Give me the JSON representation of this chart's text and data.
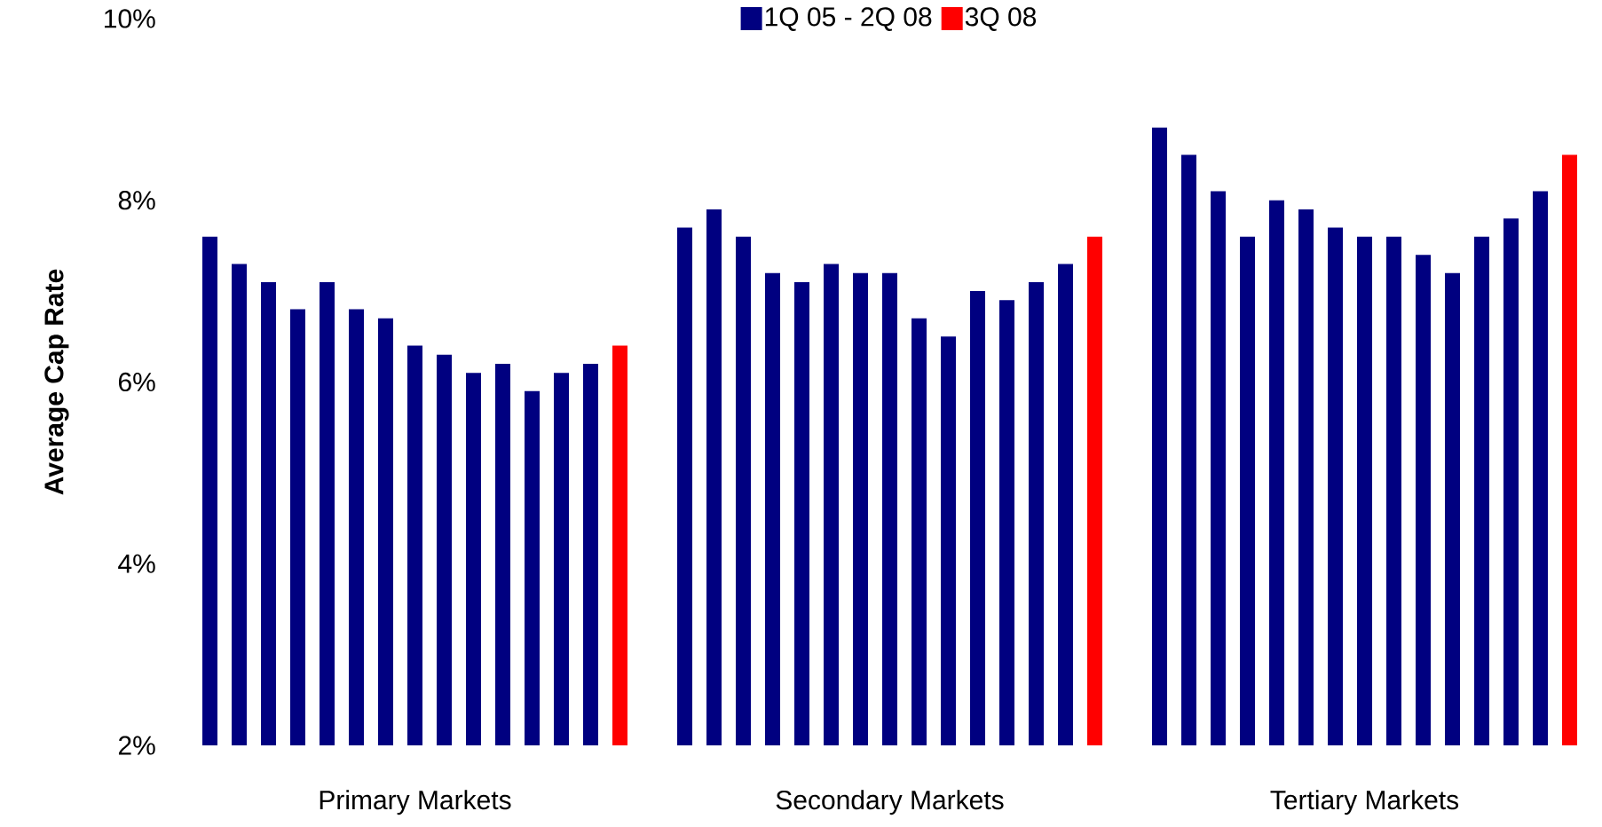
{
  "chart_data": {
    "type": "bar",
    "ylabel": "Average Cap Rate",
    "categories": [
      "Primary Markets",
      "Secondary Markets",
      "Tertiary Markets"
    ],
    "series": [
      {
        "name": "1Q 05 - 2Q 08",
        "color": "#000080",
        "values": [
          7.6,
          7.7,
          8.8
        ]
      },
      {
        "color": "#000080",
        "values": [
          7.3,
          7.9,
          8.5
        ]
      },
      {
        "color": "#000080",
        "values": [
          7.1,
          7.6,
          8.1
        ]
      },
      {
        "color": "#000080",
        "values": [
          6.8,
          7.2,
          7.6
        ]
      },
      {
        "color": "#000080",
        "values": [
          7.1,
          7.1,
          8.0
        ]
      },
      {
        "color": "#000080",
        "values": [
          6.8,
          7.3,
          7.9
        ]
      },
      {
        "color": "#000080",
        "values": [
          6.7,
          7.2,
          7.7
        ]
      },
      {
        "color": "#000080",
        "values": [
          6.4,
          7.2,
          7.6
        ]
      },
      {
        "color": "#000080",
        "values": [
          6.3,
          6.7,
          7.6
        ]
      },
      {
        "color": "#000080",
        "values": [
          6.1,
          6.5,
          7.4
        ]
      },
      {
        "color": "#000080",
        "values": [
          6.2,
          7.0,
          7.2
        ]
      },
      {
        "color": "#000080",
        "values": [
          5.9,
          6.9,
          7.6
        ]
      },
      {
        "color": "#000080",
        "values": [
          6.1,
          7.1,
          7.8
        ]
      },
      {
        "color": "#000080",
        "values": [
          6.2,
          7.3,
          8.1
        ]
      },
      {
        "name": "3Q 08",
        "color": "#ff0000",
        "values": [
          6.4,
          7.6,
          8.5
        ]
      }
    ],
    "ylim": [
      2,
      10
    ],
    "yticks": [
      {
        "value": 2,
        "label": "2%"
      },
      {
        "value": 4,
        "label": "4%"
      },
      {
        "value": 6,
        "label": "6%"
      },
      {
        "value": 8,
        "label": "8%"
      },
      {
        "value": 10,
        "label": "10%"
      }
    ],
    "legend": "top",
    "grid": false
  }
}
